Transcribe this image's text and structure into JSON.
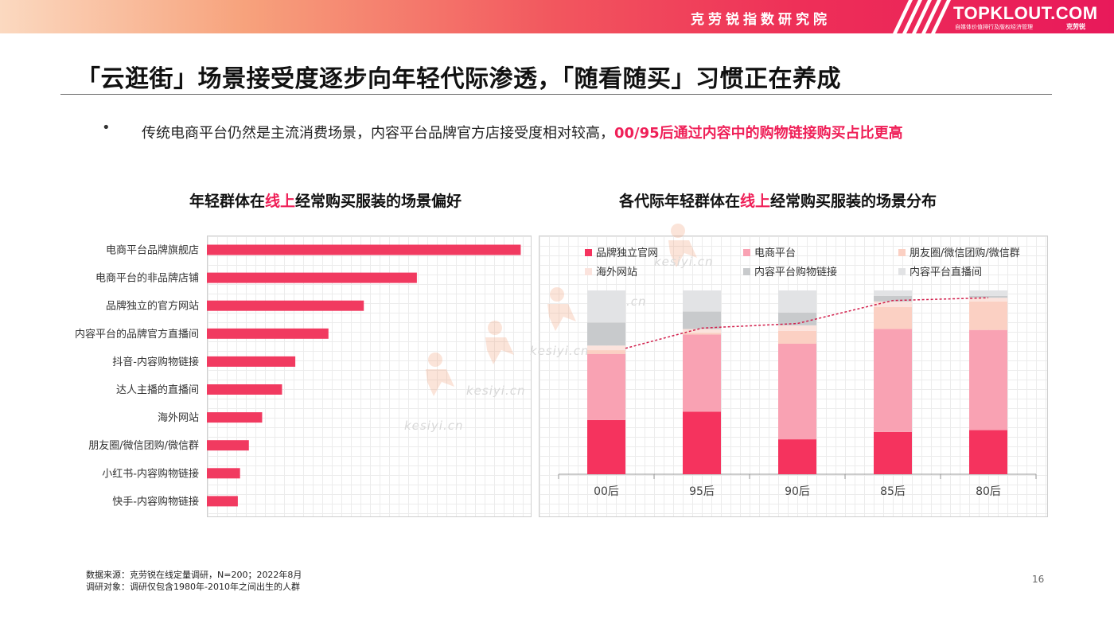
{
  "header": {
    "org_name": "克劳锐指数研究院",
    "logo_text": "TOPKLOUT.COM",
    "logo_subtitle": "自媒体价值排行及版权经济管理",
    "logo_subtitle_tag": "克劳锐"
  },
  "slide": {
    "title": "「云逛街」场景接受度逐步向年轻代际渗透，「随看随买」习惯正在养成",
    "bullet_symbol": "•",
    "summary_text": "传统电商平台仍然是主流消费场景，内容平台品牌官方店接受度相对较高，",
    "summary_highlight": "00/95后通过内容中的购物链接购买占比更高",
    "page_number": "16"
  },
  "watermark": {
    "text": "kesiyi.cn"
  },
  "footer": {
    "source": "数据来源：克劳锐在线定量调研，N=200；2022年8月",
    "subject": "调研对象：调研仅包含1980年-2010年之间出生的人群"
  },
  "colors": {
    "accent": "#ef2058",
    "brand_bar": "#f13a60",
    "series": [
      "#f5335e",
      "#f9a2b3",
      "#fbd0c3",
      "#fbe3dd",
      "#c8cacc",
      "#e2e3e5"
    ]
  },
  "chart_data": [
    {
      "type": "bar",
      "orientation": "horizontal",
      "title_prefix": "年轻群体在",
      "title_highlight": "线上",
      "title_suffix": "经常购买服装的场景偏好",
      "categories": [
        "电商平台品牌旗舰店",
        "电商平台的非品牌店铺",
        "品牌独立的官方网站",
        "内容平台的品牌官方直播间",
        "抖音-内容购物链接",
        "达人主播的直播间",
        "海外网站",
        "朋友圈/微信团购/微信群",
        "小红书-内容购物链接",
        "快手-内容购物链接"
      ],
      "values": [
        71,
        47.5,
        35.5,
        27.5,
        20,
        17,
        12.5,
        9.5,
        7.5,
        7
      ],
      "xlim": [
        0,
        72
      ],
      "grid": true
    },
    {
      "type": "bar",
      "stacked": true,
      "title_prefix": "各代际年轻群体在",
      "title_highlight": "线上",
      "title_suffix": "经常购买服装的场景分布",
      "categories": [
        "00后",
        "95后",
        "90后",
        "85后",
        "80后"
      ],
      "series": [
        {
          "name": "品牌独立官网",
          "values": [
            29.5,
            34,
            19,
            23,
            24
          ]
        },
        {
          "name": "电商平台",
          "values": [
            36,
            42,
            52,
            56,
            54.5
          ]
        },
        {
          "name": "朋友圈/微信团购/微信群",
          "values": [
            2,
            1,
            7,
            12,
            15.5
          ]
        },
        {
          "name": "海外网站",
          "values": [
            2.5,
            2,
            3,
            3,
            2
          ]
        },
        {
          "name": "内容平台购物链接",
          "values": [
            12.5,
            9.5,
            7,
            3,
            1
          ]
        },
        {
          "name": "内容平台直播间",
          "values": [
            17.5,
            11.5,
            12,
            3,
            3
          ]
        }
      ],
      "trend_line": [
        68.5,
        79.5,
        82,
        94.5,
        96
      ],
      "ylim": [
        0,
        100
      ],
      "legend_position": "top",
      "grid": true
    }
  ]
}
